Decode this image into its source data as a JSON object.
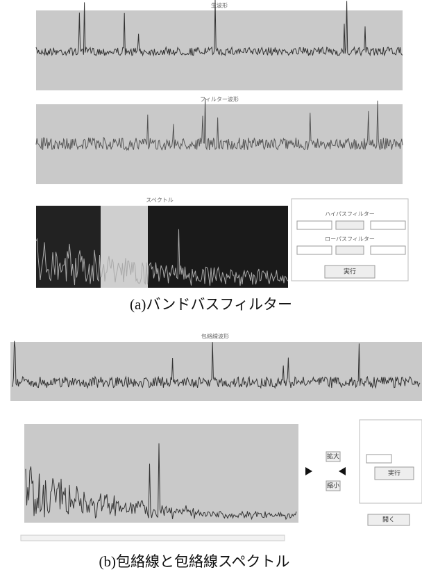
{
  "panel_a": {
    "raw_title": "生波形",
    "filtered_title": "フィルター波形",
    "spectrum_title": "スペクトル",
    "highpass_label": "ハイパスフィルター",
    "lowpass_label": "ローパスフィルター",
    "run_button": "実行",
    "caption": "(a)バンドバスフィルター"
  },
  "panel_b": {
    "envelope_title": "包絡線波形",
    "zoom_in": "拡大",
    "zoom_out": "縮小",
    "run_button": "実行",
    "open_button": "開く",
    "caption": "(b)包絡線と包絡線スペクトル"
  }
}
